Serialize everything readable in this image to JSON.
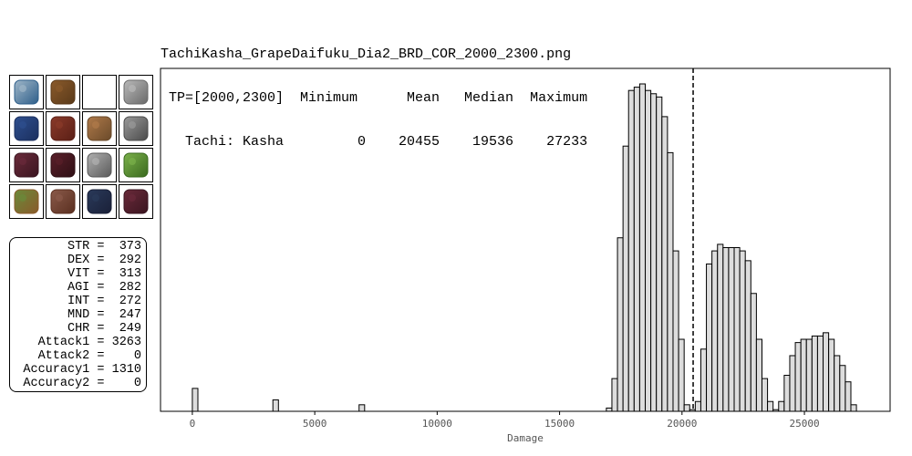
{
  "header": {
    "filename": "TachiKasha_GrapeDaifuku_Dia2_BRD_COR_2000_2300.png",
    "columns_line": " TP=[2000,2300]  Minimum      Mean   Median  Maximum",
    "values_line": "   Tachi: Kasha         0    20455    19536    27233"
  },
  "equipment": [
    {
      "icon": "sword-icon",
      "colors": [
        "#9fb6c8",
        "#2f5f8a"
      ]
    },
    {
      "icon": "ammo-spool-icon",
      "colors": [
        "#8a5a2b",
        "#5a3a1a"
      ]
    },
    {
      "icon": "empty-slot-icon",
      "colors": [
        "#ffffff",
        "#ffffff"
      ]
    },
    {
      "icon": "crossbow-blade-icon",
      "colors": [
        "#b8b8b8",
        "#6a6a6a"
      ]
    },
    {
      "icon": "helm-icon",
      "colors": [
        "#2e4f8f",
        "#1b2f5e"
      ]
    },
    {
      "icon": "body-armor-icon",
      "colors": [
        "#8a3a2a",
        "#5a1f16"
      ]
    },
    {
      "icon": "necklace-icon",
      "colors": [
        "#b07a4a",
        "#6a4a2a"
      ]
    },
    {
      "icon": "earring-icon",
      "colors": [
        "#9a9a9a",
        "#4a4a4a"
      ]
    },
    {
      "icon": "gauntlet-icon",
      "colors": [
        "#6a2a3a",
        "#3a1520"
      ]
    },
    {
      "icon": "glove-icon",
      "colors": [
        "#5a1f2a",
        "#2f1015"
      ]
    },
    {
      "icon": "ring-icon",
      "colors": [
        "#b0b0b0",
        "#5a5a5a"
      ]
    },
    {
      "icon": "ring-green-icon",
      "colors": [
        "#7ab04a",
        "#3a6a1f"
      ]
    },
    {
      "icon": "cape-icon",
      "colors": [
        "#6a8a3a",
        "#8a5a2a"
      ]
    },
    {
      "icon": "belt-icon",
      "colors": [
        "#8a5a4a",
        "#5a2f20"
      ]
    },
    {
      "icon": "legs-icon",
      "colors": [
        "#2a3a5a",
        "#1a2038"
      ]
    },
    {
      "icon": "boots-icon",
      "colors": [
        "#6a2a3a",
        "#3a1520"
      ]
    }
  ],
  "stats": [
    "STR =  373",
    "DEX =  292",
    "VIT =  313",
    "AGI =  282",
    "INT =  272",
    "MND =  247",
    "CHR =  249",
    "Attack1 = 3263",
    "Attack2 =    0",
    "Accuracy1 = 1310",
    "Accuracy2 =    0"
  ],
  "chart_data": {
    "type": "histogram",
    "title": "",
    "xlabel": "Damage",
    "ylabel": "",
    "xlim": [
      -1300,
      28500
    ],
    "ylim": [
      0,
      1
    ],
    "x_ticks": [
      0,
      5000,
      10000,
      15000,
      20000,
      25000
    ],
    "x_tick_labels": [
      "0",
      "5000",
      "10000",
      "15000",
      "20000",
      "25000"
    ],
    "mean_line": 20455,
    "fill_color": "#dddddd",
    "edge_color": "#000000",
    "bin_width": 227,
    "series": [
      {
        "bins": [
          {
            "x0": 0,
            "x1": 227,
            "y": 0.07
          },
          {
            "x0": 3290,
            "x1": 3517,
            "y": 0.035
          },
          {
            "x0": 6810,
            "x1": 7037,
            "y": 0.02
          },
          {
            "x0": 16910,
            "x1": 17137,
            "y": 0.01
          },
          {
            "x0": 17137,
            "x1": 17364,
            "y": 0.1
          },
          {
            "x0": 17364,
            "x1": 17591,
            "y": 0.53
          },
          {
            "x0": 17591,
            "x1": 17818,
            "y": 0.81
          },
          {
            "x0": 17818,
            "x1": 18045,
            "y": 0.98
          },
          {
            "x0": 18045,
            "x1": 18272,
            "y": 0.99
          },
          {
            "x0": 18272,
            "x1": 18499,
            "y": 1.0
          },
          {
            "x0": 18499,
            "x1": 18726,
            "y": 0.98
          },
          {
            "x0": 18726,
            "x1": 18953,
            "y": 0.97
          },
          {
            "x0": 18953,
            "x1": 19180,
            "y": 0.96
          },
          {
            "x0": 19180,
            "x1": 19407,
            "y": 0.9
          },
          {
            "x0": 19407,
            "x1": 19634,
            "y": 0.79
          },
          {
            "x0": 19634,
            "x1": 19861,
            "y": 0.49
          },
          {
            "x0": 19861,
            "x1": 20088,
            "y": 0.22
          },
          {
            "x0": 20088,
            "x1": 20315,
            "y": 0.02
          },
          {
            "x0": 20315,
            "x1": 20542,
            "y": 0.005
          },
          {
            "x0": 20542,
            "x1": 20769,
            "y": 0.03
          },
          {
            "x0": 20769,
            "x1": 20996,
            "y": 0.19
          },
          {
            "x0": 20996,
            "x1": 21223,
            "y": 0.45
          },
          {
            "x0": 21223,
            "x1": 21450,
            "y": 0.49
          },
          {
            "x0": 21450,
            "x1": 21677,
            "y": 0.51
          },
          {
            "x0": 21677,
            "x1": 21904,
            "y": 0.5
          },
          {
            "x0": 21904,
            "x1": 22131,
            "y": 0.5
          },
          {
            "x0": 22131,
            "x1": 22358,
            "y": 0.5
          },
          {
            "x0": 22358,
            "x1": 22585,
            "y": 0.49
          },
          {
            "x0": 22585,
            "x1": 22812,
            "y": 0.46
          },
          {
            "x0": 22812,
            "x1": 23039,
            "y": 0.36
          },
          {
            "x0": 23039,
            "x1": 23266,
            "y": 0.22
          },
          {
            "x0": 23266,
            "x1": 23493,
            "y": 0.1
          },
          {
            "x0": 23493,
            "x1": 23720,
            "y": 0.03
          },
          {
            "x0": 23720,
            "x1": 23947,
            "y": 0.005
          },
          {
            "x0": 23947,
            "x1": 24174,
            "y": 0.03
          },
          {
            "x0": 24174,
            "x1": 24401,
            "y": 0.11
          },
          {
            "x0": 24401,
            "x1": 24628,
            "y": 0.17
          },
          {
            "x0": 24628,
            "x1": 24855,
            "y": 0.21
          },
          {
            "x0": 24855,
            "x1": 25082,
            "y": 0.22
          },
          {
            "x0": 25082,
            "x1": 25309,
            "y": 0.22
          },
          {
            "x0": 25309,
            "x1": 25536,
            "y": 0.23
          },
          {
            "x0": 25536,
            "x1": 25763,
            "y": 0.23
          },
          {
            "x0": 25763,
            "x1": 25990,
            "y": 0.24
          },
          {
            "x0": 25990,
            "x1": 26217,
            "y": 0.22
          },
          {
            "x0": 26217,
            "x1": 26444,
            "y": 0.17
          },
          {
            "x0": 26444,
            "x1": 26671,
            "y": 0.14
          },
          {
            "x0": 26671,
            "x1": 26898,
            "y": 0.09
          },
          {
            "x0": 26898,
            "x1": 27125,
            "y": 0.02
          }
        ]
      }
    ],
    "grid": false
  }
}
